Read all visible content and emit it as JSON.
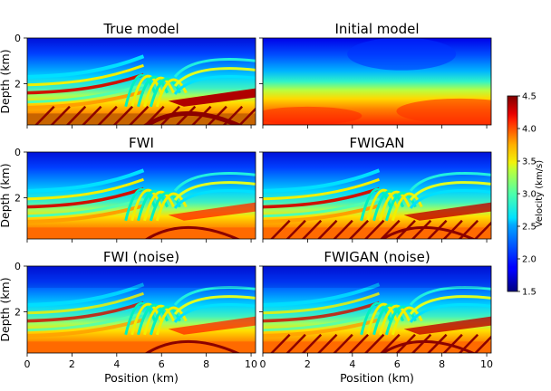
{
  "figure": {
    "panels": [
      {
        "title": "True model",
        "kind": "true",
        "show_ylabel": true,
        "show_xlabel": false
      },
      {
        "title": "Initial model",
        "kind": "initial",
        "show_ylabel": false,
        "show_xlabel": false
      },
      {
        "title": "FWI",
        "kind": "fwi",
        "show_ylabel": true,
        "show_xlabel": false
      },
      {
        "title": "FWIGAN",
        "kind": "fwigan",
        "show_ylabel": false,
        "show_xlabel": false
      },
      {
        "title": "FWI (noise)",
        "kind": "fwi_noise",
        "show_ylabel": true,
        "show_xlabel": true
      },
      {
        "title": "FWIGAN (noise)",
        "kind": "fwigan_noise",
        "show_ylabel": false,
        "show_xlabel": true
      }
    ],
    "ylabel": "Depth (km)",
    "xlabel": "Position (km)",
    "colorbar_label": "Velocity (km/s)"
  },
  "chart_data": {
    "type": "heatmap",
    "panel_titles": [
      "True model",
      "Initial model",
      "FWI",
      "FWIGAN",
      "FWI (noise)",
      "FWIGAN (noise)"
    ],
    "xlabel": "Position (km)",
    "ylabel": "Depth (km)",
    "xlim": [
      0,
      10.2
    ],
    "ylim": [
      3.8,
      0
    ],
    "x_ticks": [
      0,
      2,
      4,
      6,
      8,
      10
    ],
    "y_ticks": [
      0,
      2
    ],
    "colorbar": {
      "label": "Velocity (km/s)",
      "range": [
        1.5,
        4.5
      ],
      "ticks": [
        "1.5",
        "2.0",
        "2.5",
        "3.0",
        "3.5",
        "4.0",
        "4.5"
      ],
      "colormap": "jet"
    }
  }
}
